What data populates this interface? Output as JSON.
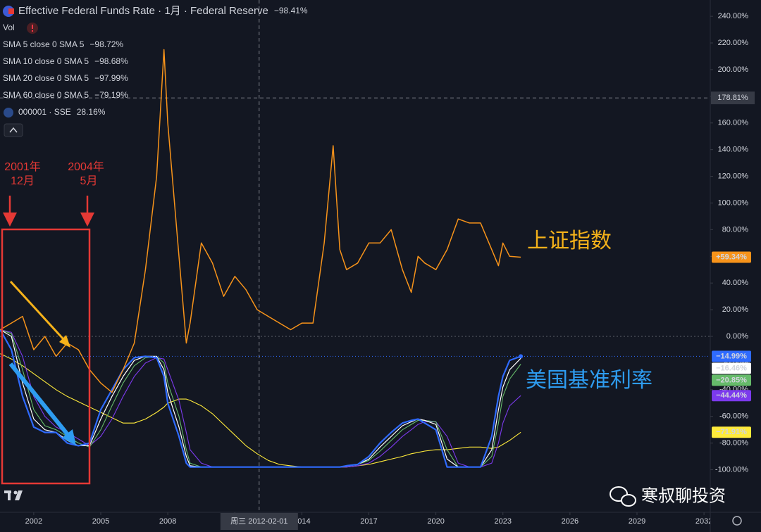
{
  "chart_data": {
    "type": "line",
    "x": [
      2000.5,
      2001,
      2001.5,
      2002,
      2002.5,
      2003,
      2003.5,
      2004,
      2004.5,
      2005,
      2005.5,
      2006,
      2006.5,
      2007,
      2007.5,
      2007.83,
      2008,
      2008.5,
      2008.83,
      2009,
      2009.5,
      2010,
      2010.5,
      2011,
      2011.5,
      2012,
      2012.5,
      2013,
      2013.5,
      2014,
      2014.5,
      2015,
      2015.4,
      2015.7,
      2016,
      2016.5,
      2017,
      2017.5,
      2018,
      2018.5,
      2018.9,
      2019.2,
      2019.5,
      2020,
      2020.5,
      2021,
      2021.5,
      2022,
      2022.5,
      2022.8,
      2023,
      2023.3,
      2023.8
    ],
    "series": [
      {
        "name": "Effective Federal Funds Rate · 1月 · Federal Reserve",
        "legend_value": "−98.41%",
        "last_label": "−14.99%",
        "color": "#2f6bff",
        "width": 2.2,
        "values": [
          5,
          -10,
          -45,
          -68,
          -72,
          -72,
          -80,
          -82,
          -80,
          -55,
          -40,
          -25,
          -16,
          -15,
          -16,
          -30,
          -50,
          -75,
          -95,
          -98,
          -98,
          -98,
          -98,
          -98,
          -98,
          -98,
          -98,
          -98,
          -98,
          -98,
          -98,
          -98,
          -98,
          -98,
          -97,
          -96,
          -90,
          -80,
          -72,
          -65,
          -63,
          -62,
          -65,
          -70,
          -98,
          -98,
          -98,
          -98,
          -75,
          -45,
          -30,
          -18,
          -14.99
        ]
      },
      {
        "name": "SMA 5 close 0 SMA 5",
        "legend_value": "−98.72%",
        "last_label": "−16.46%",
        "color": "#ffffff",
        "width": 1.2,
        "values": [
          5,
          0,
          -35,
          -62,
          -70,
          -72,
          -78,
          -82,
          -82,
          -62,
          -45,
          -30,
          -18,
          -15,
          -15,
          -25,
          -42,
          -68,
          -90,
          -97,
          -98,
          -98,
          -98,
          -98,
          -98,
          -98,
          -98,
          -98,
          -98,
          -98,
          -98,
          -98,
          -98,
          -98,
          -97,
          -96,
          -92,
          -83,
          -75,
          -67,
          -64,
          -62,
          -63,
          -66,
          -92,
          -98,
          -98,
          -98,
          -85,
          -55,
          -38,
          -25,
          -16.46
        ]
      },
      {
        "name": "SMA 10 close 0 SMA 5",
        "legend_value": "−98.68%",
        "last_label": "−20.85%",
        "color": "#66bb6a",
        "width": 1.1,
        "values": [
          5,
          2,
          -25,
          -55,
          -67,
          -70,
          -75,
          -80,
          -83,
          -70,
          -52,
          -35,
          -22,
          -16,
          -15,
          -20,
          -35,
          -60,
          -85,
          -95,
          -98,
          -98,
          -98,
          -98,
          -98,
          -98,
          -98,
          -98,
          -98,
          -98,
          -98,
          -98,
          -98,
          -98,
          -97,
          -96,
          -93,
          -86,
          -78,
          -70,
          -66,
          -63,
          -63,
          -64,
          -85,
          -98,
          -98,
          -98,
          -90,
          -65,
          -45,
          -32,
          -20.85
        ]
      },
      {
        "name": "SMA 20 close 0 SMA 5",
        "legend_value": "−97.99%",
        "last_label": "−44.44%",
        "color": "#7c3aed",
        "width": 1.1,
        "values": [
          5,
          3,
          -15,
          -45,
          -60,
          -68,
          -72,
          -77,
          -82,
          -75,
          -62,
          -45,
          -30,
          -20,
          -16,
          -17,
          -25,
          -48,
          -72,
          -85,
          -95,
          -98,
          -98,
          -98,
          -98,
          -98,
          -98,
          -98,
          -98,
          -98,
          -98,
          -98,
          -98,
          -98,
          -98,
          -97,
          -95,
          -90,
          -83,
          -75,
          -70,
          -66,
          -64,
          -64,
          -75,
          -95,
          -98,
          -98,
          -95,
          -80,
          -65,
          -52,
          -44.44
        ]
      },
      {
        "name": "SMA 60 close 0 SMA 5",
        "legend_value": "−79.19%",
        "last_label": "−71.91%",
        "color": "#ffeb3b",
        "width": 1.1,
        "values": [
          -13,
          -17,
          -22,
          -28,
          -34,
          -40,
          -45,
          -49,
          -53,
          -57,
          -61,
          -65,
          -65,
          -62,
          -57,
          -53,
          -50,
          -47,
          -47,
          -48,
          -52,
          -58,
          -66,
          -74,
          -82,
          -88,
          -93,
          -96,
          -97,
          -98,
          -98,
          -98,
          -98,
          -98,
          -98,
          -97,
          -96,
          -94,
          -92,
          -90,
          -88,
          -87,
          -86,
          -85,
          -85,
          -84,
          -83,
          -83,
          -84,
          -83,
          -81,
          -78,
          -71.91
        ]
      },
      {
        "name": "000001 · SSE",
        "legend_value": "28.16%",
        "last_label": "+59.34%",
        "color": "#f7931a",
        "width": 1.5,
        "values": [
          5,
          10,
          15,
          -10,
          0,
          -15,
          -5,
          -10,
          -25,
          -35,
          -42,
          -25,
          -5,
          50,
          120,
          215,
          160,
          60,
          -5,
          10,
          70,
          55,
          30,
          45,
          35,
          20,
          15,
          10,
          5,
          10,
          10,
          70,
          143,
          65,
          50,
          55,
          70,
          70,
          80,
          50,
          33,
          60,
          55,
          50,
          65,
          88,
          85,
          85,
          65,
          53,
          70,
          60,
          59.34
        ]
      }
    ],
    "vol_label": "Vol",
    "xlim": [
      2000.49,
      2032.28
    ],
    "ylim": [
      -131.9,
      252.2
    ],
    "xticks": [
      2002,
      2005,
      2008,
      2011,
      2014,
      2017,
      2020,
      2023,
      2026,
      2029,
      2032
    ],
    "yticks": [
      {
        "value": 240,
        "label": "240.00%"
      },
      {
        "value": 220,
        "label": "220.00%"
      },
      {
        "value": 200,
        "label": "200.00%"
      },
      {
        "value": 180,
        "label": "180.00%"
      },
      {
        "value": 160,
        "label": "160.00%"
      },
      {
        "value": 140,
        "label": "140.00%"
      },
      {
        "value": 120,
        "label": "120.00%"
      },
      {
        "value": 100,
        "label": "100.00%"
      },
      {
        "value": 80,
        "label": "80.00%"
      },
      {
        "value": 60,
        "label": "60.00%"
      },
      {
        "value": 40,
        "label": "40.00%"
      },
      {
        "value": 20,
        "label": "20.00%"
      },
      {
        "value": 0,
        "label": "0.00%"
      },
      {
        "value": -20,
        "label": "-20.00%"
      },
      {
        "value": -40,
        "label": "-40.00%"
      },
      {
        "value": -60,
        "label": "-60.00%"
      },
      {
        "value": -80,
        "label": "-80.00%"
      },
      {
        "value": -100,
        "label": "-100.00%"
      }
    ],
    "grid": false,
    "crosshair": {
      "x": 2012.09,
      "y": 178.81,
      "x_label": "周三 2012-02-01",
      "y_label": "178.81%"
    },
    "annotations": [
      {
        "text": [
          "2001年",
          "12月"
        ],
        "color": "#e53935"
      },
      {
        "text": [
          "2004年",
          "5月"
        ],
        "color": "#e53935"
      },
      {
        "text": [
          "上证指数"
        ],
        "color": "#f5b21a"
      },
      {
        "text": [
          "美国基准利率"
        ],
        "color": "#2e9cf0"
      }
    ],
    "watermark": "寒叔聊投资"
  }
}
